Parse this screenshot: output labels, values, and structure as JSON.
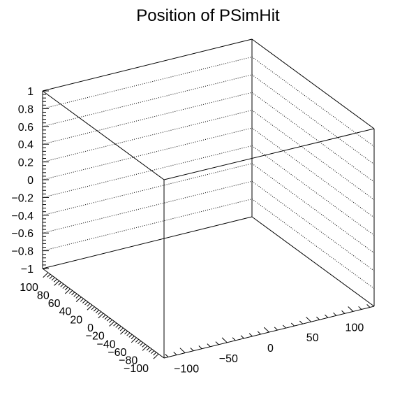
{
  "chart_data": {
    "type": "scatter",
    "title": "Position of PSimHit",
    "xlabel": "",
    "ylabel": "",
    "zlabel": "",
    "xlim": [
      -125,
      125
    ],
    "ylim": [
      -110,
      110
    ],
    "zlim": [
      -1,
      1
    ],
    "x_ticks": [
      "−100",
      "−50",
      "0",
      "50",
      "100"
    ],
    "x_tick_values": [
      -100,
      -50,
      0,
      50,
      100
    ],
    "y_ticks": [
      "100",
      "80",
      "60",
      "40",
      "20",
      "0",
      "−20",
      "−40",
      "−60",
      "−80",
      "−100"
    ],
    "y_tick_values": [
      100,
      80,
      60,
      40,
      20,
      0,
      -20,
      -40,
      -60,
      -80,
      -100
    ],
    "z_ticks": [
      "1",
      "0.8",
      "0.6",
      "0.4",
      "0.2",
      "0",
      "−0.2",
      "−0.4",
      "−0.6",
      "−0.8",
      "−1"
    ],
    "z_tick_values": [
      1,
      0.8,
      0.6,
      0.4,
      0.2,
      0,
      -0.2,
      -0.4,
      -0.6,
      -0.8,
      -1
    ],
    "grid": true,
    "series": [
      {
        "points": []
      }
    ]
  }
}
